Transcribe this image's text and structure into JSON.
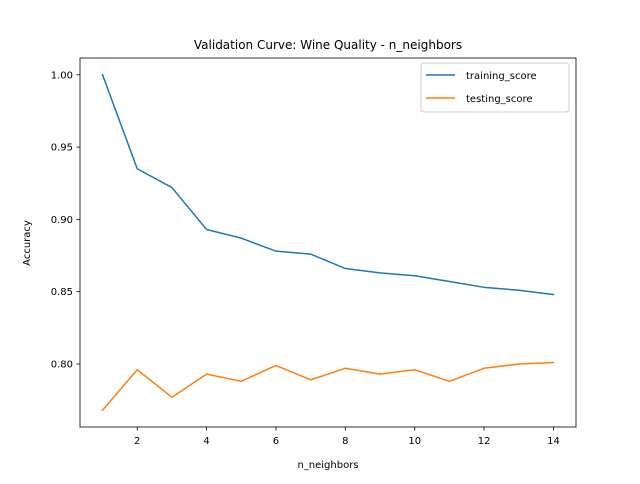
{
  "chart_data": {
    "type": "line",
    "title": "Validation Curve: Wine Quality - n_neighbors",
    "xlabel": "n_neighbors",
    "ylabel": "Accuracy",
    "x": [
      1,
      2,
      3,
      4,
      5,
      6,
      7,
      8,
      9,
      10,
      11,
      12,
      13,
      14
    ],
    "series": [
      {
        "name": "training_score",
        "color": "#1f77b4",
        "values": [
          1.0,
          0.935,
          0.922,
          0.893,
          0.887,
          0.878,
          0.876,
          0.866,
          0.863,
          0.861,
          0.857,
          0.853,
          0.851,
          0.848
        ]
      },
      {
        "name": "testing_score",
        "color": "#ff7f0e",
        "values": [
          0.768,
          0.796,
          0.777,
          0.793,
          0.788,
          0.799,
          0.789,
          0.797,
          0.793,
          0.796,
          0.788,
          0.797,
          0.8,
          0.801
        ]
      }
    ],
    "xlim": [
      0.35,
      14.65
    ],
    "ylim": [
      0.7564,
      1.0116
    ],
    "xticks": [
      2,
      4,
      6,
      8,
      10,
      12,
      14
    ],
    "xtick_labels": [
      "2",
      "4",
      "6",
      "8",
      "10",
      "12",
      "14"
    ],
    "yticks": [
      0.8,
      0.85,
      0.9,
      0.95,
      1.0
    ],
    "ytick_labels": [
      "0.80",
      "0.85",
      "0.90",
      "0.95",
      "1.00"
    ],
    "grid": false,
    "legend_position": "top-right"
  }
}
